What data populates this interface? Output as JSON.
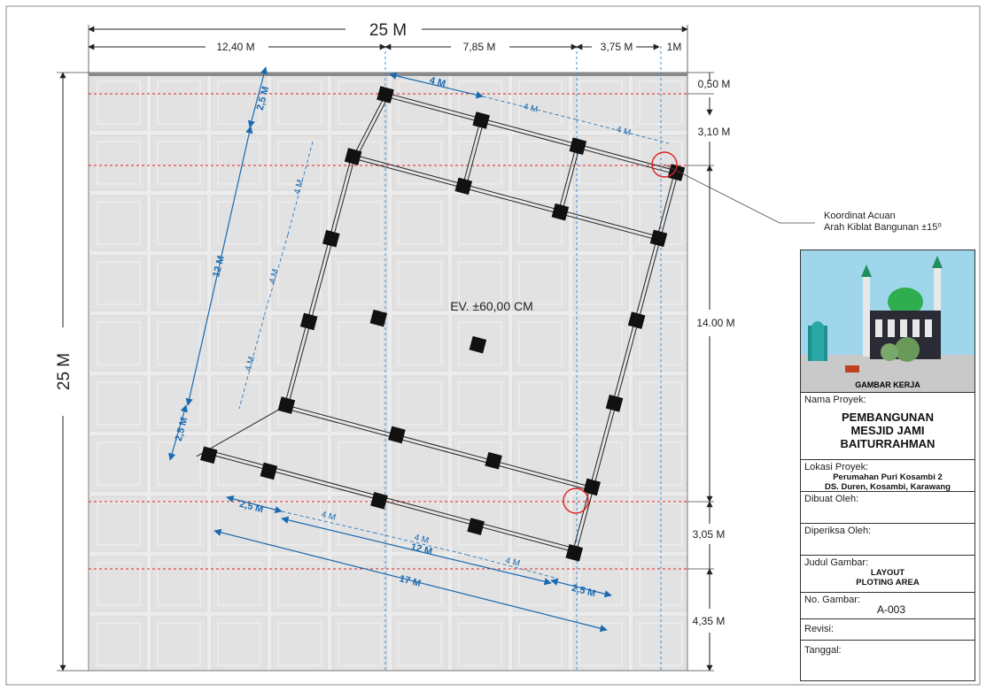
{
  "dimensions": {
    "total_width": "25 M",
    "total_height": "25 M",
    "top_segments": [
      "12,40 M",
      "7,85 M",
      "3,75 M",
      "1M"
    ],
    "right_segments": [
      "0,50 M",
      "3,10 M",
      "14.00 M",
      "3,05 M",
      "4,35 M"
    ]
  },
  "building": {
    "elevation": "EV. ±60,00 CM",
    "dims_top": [
      "4 M",
      "4 M",
      "4 M"
    ],
    "dims_left": [
      "2,5 M",
      "4 M",
      "4 M",
      "4 M",
      "12 M",
      "2,5 M"
    ],
    "dims_bottom": [
      "2,5 M",
      "4 M",
      "4 M",
      "4 M",
      "12 M",
      "2,5 M",
      "17 M"
    ]
  },
  "callout": {
    "line1": "Koordinat Acuan",
    "line2": "Arah Kiblat Bangunan ±15⁰"
  },
  "title_block": {
    "image_caption": "GAMBAR KERJA",
    "project_label": "Nama Proyek:",
    "project_name": [
      "PEMBANGUNAN",
      "MESJID JAMI",
      "BAITURRAHMAN"
    ],
    "location_label": "Lokasi Proyek:",
    "location": [
      "Perumahan Puri Kosambi 2",
      "DS. Duren, Kosambi, Karawang"
    ],
    "made_by_label": "Dibuat Oleh:",
    "checked_by_label": "Diperiksa Oleh:",
    "drawing_title_label": "Judul Gambar:",
    "drawing_title": [
      "LAYOUT",
      "PLOTING AREA"
    ],
    "drawing_no_label": "No. Gambar:",
    "drawing_no": "A-003",
    "revision_label": "Revisi:",
    "date_label": "Tanggal:"
  },
  "colors": {
    "dimension_blue": "#1a6ab0",
    "reference_red": "#e02020",
    "column_black": "#111111",
    "ground_tile": "#e8e8e8"
  }
}
